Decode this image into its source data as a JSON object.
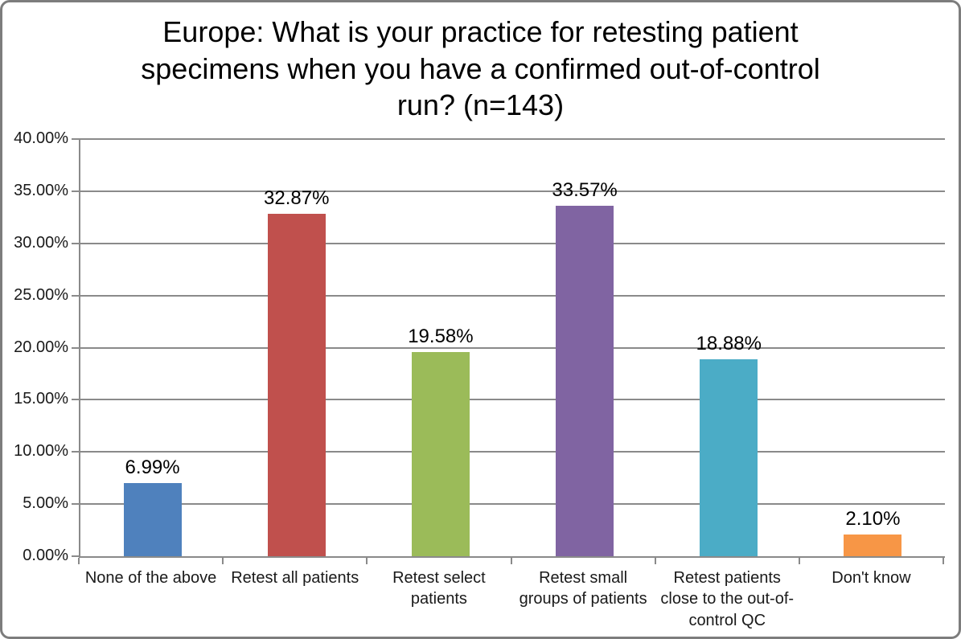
{
  "chart_data": {
    "type": "bar",
    "title": "Europe: What is your practice for retesting patient specimens when you have a confirmed out-of-control run? (n=143)",
    "title_lines": [
      "Europe: What is your practice for retesting patient",
      "specimens when you have a confirmed out-of-control",
      "run? (n=143)"
    ],
    "categories": [
      "None of the above",
      "Retest all patients",
      "Retest select patients",
      "Retest small groups of patients",
      "Retest patients close to the out-of-control QC",
      "Don't know"
    ],
    "values": [
      6.99,
      32.87,
      19.58,
      33.57,
      18.88,
      2.1
    ],
    "data_labels": [
      "6.99%",
      "32.87%",
      "19.58%",
      "33.57%",
      "18.88%",
      "2.10%"
    ],
    "bar_colors": [
      "#4F81BD",
      "#C0504D",
      "#9BBB59",
      "#8064A2",
      "#4BACC6",
      "#F79646"
    ],
    "xlabel": "",
    "ylabel": "",
    "ylim": [
      0,
      40
    ],
    "ytick_step": 5,
    "ytick_labels": [
      "0.00%",
      "5.00%",
      "10.00%",
      "15.00%",
      "20.00%",
      "25.00%",
      "30.00%",
      "35.00%",
      "40.00%"
    ],
    "grid": true,
    "legend_position": "none",
    "colors": {
      "gridline": "#8a8a8a",
      "axis_line": "#8a8a8a",
      "text": "#000000",
      "frame_border": "#7d7d7d",
      "background": "#ffffff"
    }
  }
}
